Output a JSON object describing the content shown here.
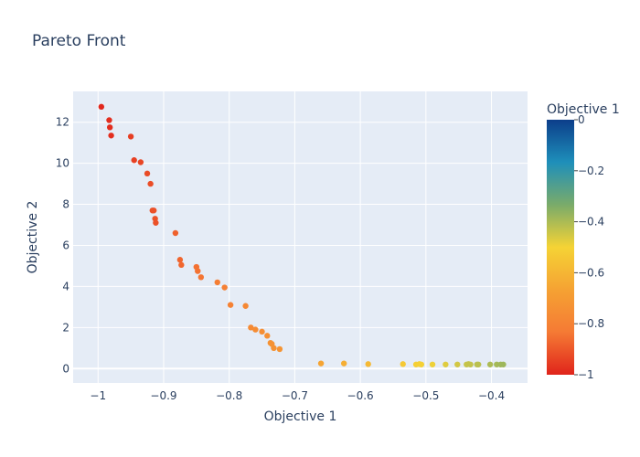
{
  "chart_data": {
    "type": "scatter",
    "title": "Pareto Front",
    "xlabel": "Objective 1",
    "ylabel": "Objective 2",
    "xlim": [
      -1.038,
      -0.345
    ],
    "ylim": [
      -0.7,
      13.5
    ],
    "x_ticks": [
      -1,
      -0.9,
      -0.8,
      -0.7,
      -0.6,
      -0.5,
      -0.4
    ],
    "x_tick_labels": [
      "−1",
      "−0.9",
      "−0.8",
      "−0.7",
      "−0.6",
      "−0.5",
      "−0.4"
    ],
    "y_ticks": [
      0,
      2,
      4,
      6,
      8,
      10,
      12
    ],
    "y_tick_labels": [
      "0",
      "2",
      "4",
      "6",
      "8",
      "10",
      "12"
    ],
    "grid": true,
    "colorbar": {
      "title": "Objective 1",
      "range": [
        -1,
        0
      ],
      "ticks": [
        0,
        -0.2,
        -0.4,
        -0.6,
        -0.8,
        -1
      ],
      "tick_labels": [
        "0",
        "−0.2",
        "−0.4",
        "−0.6",
        "−0.8",
        "−1"
      ],
      "colorscale": [
        "#e0241b",
        "#f57a34",
        "#f5a233",
        "#f5d335",
        "#7aab6a",
        "#1e8fba",
        "#0c3e8a"
      ]
    },
    "series": [
      {
        "x": [
          -0.995,
          -0.983,
          -0.982,
          -0.98,
          -0.95,
          -0.945,
          -0.935,
          -0.925,
          -0.92,
          -0.917,
          -0.915,
          -0.913,
          -0.912,
          -0.882,
          -0.875,
          -0.873,
          -0.85,
          -0.848,
          -0.843,
          -0.818,
          -0.807,
          -0.798,
          -0.775,
          -0.767,
          -0.76,
          -0.75,
          -0.742,
          -0.737,
          -0.735,
          -0.732,
          -0.723,
          -0.66,
          -0.625,
          -0.588,
          -0.535,
          -0.515,
          -0.51,
          -0.507,
          -0.49,
          -0.47,
          -0.452,
          -0.438,
          -0.435,
          -0.432,
          -0.422,
          -0.42,
          -0.402,
          -0.392,
          -0.386,
          -0.382
        ],
        "y": [
          12.75,
          12.1,
          11.75,
          11.35,
          11.3,
          10.15,
          10.05,
          9.5,
          9.0,
          7.7,
          7.7,
          7.3,
          7.1,
          6.6,
          5.3,
          5.05,
          4.95,
          4.75,
          4.45,
          4.2,
          3.95,
          3.1,
          3.05,
          2.0,
          1.9,
          1.8,
          1.6,
          1.25,
          1.2,
          1.0,
          0.95,
          0.25,
          0.25,
          0.22,
          0.22,
          0.2,
          0.22,
          0.2,
          0.2,
          0.2,
          0.2,
          0.2,
          0.22,
          0.2,
          0.2,
          0.2,
          0.2,
          0.2,
          0.2,
          0.2
        ]
      }
    ]
  }
}
